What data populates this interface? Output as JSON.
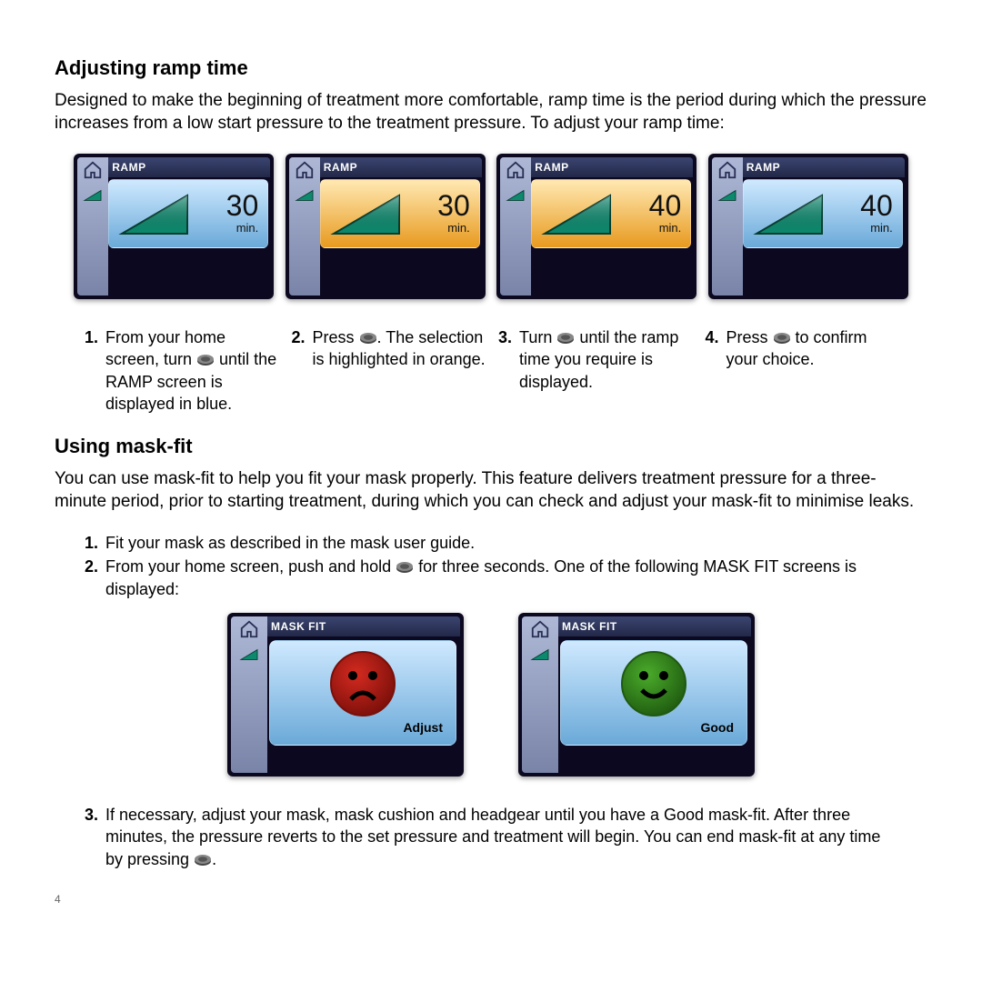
{
  "section1": {
    "heading": "Adjusting ramp time",
    "intro": "Designed to make the beginning of treatment more comfortable, ramp time is the period during which the pressure increases from a low start pressure to the treatment pressure. To adjust your ramp time:"
  },
  "ramp_screens": [
    {
      "title": "RAMP",
      "value": "30",
      "unit": "min.",
      "highlight": "blue",
      "panel_gradient_top": "#cfe9ff",
      "panel_gradient_bottom": "#6aa9d8"
    },
    {
      "title": "RAMP",
      "value": "30",
      "unit": "min.",
      "highlight": "orange",
      "panel_gradient_top": "#ffe9b3",
      "panel_gradient_bottom": "#e89a1f"
    },
    {
      "title": "RAMP",
      "value": "40",
      "unit": "min.",
      "highlight": "orange",
      "panel_gradient_top": "#ffe9b3",
      "panel_gradient_bottom": "#e89a1f"
    },
    {
      "title": "RAMP",
      "value": "40",
      "unit": "min.",
      "highlight": "blue",
      "panel_gradient_top": "#cfe9ff",
      "panel_gradient_bottom": "#6aa9d8"
    }
  ],
  "ramp_styling": {
    "screen_bg": "#0b0820",
    "triangle_fill": "#0d8a6e",
    "triangle_stroke": "#053d30",
    "sidebar_gradient_top": "#aeb8d6",
    "sidebar_gradient_bottom": "#7a84a8",
    "titlebar_color": "#ffffff"
  },
  "steps": [
    {
      "n": "1.",
      "pre": "From your home screen, turn ",
      "post": " until the RAMP screen is displayed in blue."
    },
    {
      "n": "2.",
      "pre": "Press ",
      "post": ". The selection is highlighted in orange."
    },
    {
      "n": "3.",
      "pre": "Turn ",
      "post": " until the ramp time you require is displayed."
    },
    {
      "n": "4.",
      "pre": "Press ",
      "post": " to confirm your choice."
    }
  ],
  "section2": {
    "heading": "Using mask-fit",
    "intro": "You can use mask-fit to help you fit your mask properly. This feature delivers treatment pressure for a three-minute period, prior to starting treatment, during which you can check and adjust your mask-fit to minimise leaks."
  },
  "mask_steps": {
    "s1_n": "1.",
    "s1": "Fit your mask as described in the mask user guide.",
    "s2_n": "2.",
    "s2_pre": "From your home screen, push and hold ",
    "s2_post": " for three seconds. One of the following MASK FIT screens is displayed:"
  },
  "mask_screens": [
    {
      "title": "MASK FIT",
      "label": "Adjust",
      "face": "sad",
      "face_fill": "#d42a1f",
      "face_edge": "#7a0f0a"
    },
    {
      "title": "MASK FIT",
      "label": "Good",
      "face": "happy",
      "face_fill": "#4aab2a",
      "face_edge": "#1f5a10"
    }
  ],
  "mask_step3": {
    "n": "3.",
    "pre": "If necessary, adjust your mask, mask cushion and headgear until you have a Good mask-fit. After three minutes, the pressure reverts to the set pressure and treatment will begin. You can end mask-fit at any time by pressing ",
    "post": "."
  },
  "page_number": "4"
}
